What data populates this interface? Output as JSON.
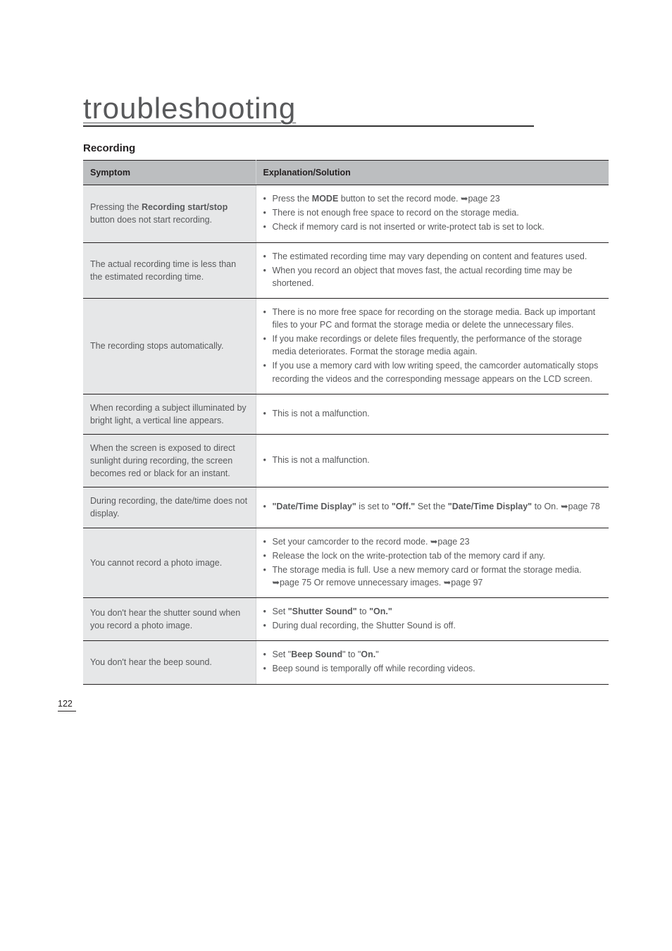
{
  "page": {
    "title": "troubleshooting",
    "section": "Recording",
    "header": {
      "symptom": "Symptom",
      "solution": "Explanation/Solution"
    },
    "page_number": "122"
  },
  "rows": [
    {
      "symptom_html": "Pressing the <b>Recording start/stop</b> button does not start recording.",
      "solution_items": [
        "Press the <b>MODE</b> button to set the record mode. ➥page 23",
        "There is not enough free space to record on the storage media.",
        "Check if memory card is not inserted or write-protect tab is set to lock."
      ]
    },
    {
      "symptom_html": "The actual recording time is less than the estimated recording time.",
      "solution_items": [
        "The estimated recording time may vary depending on content and features used.",
        "When you record an object that moves fast, the actual recording time may be shortened."
      ]
    },
    {
      "symptom_html": "The recording stops automatically.",
      "solution_items": [
        "There is no more free space for recording on the storage media. Back up important files to your PC and format the storage media or delete the unnecessary files.",
        "If you make recordings or delete files frequently, the performance of the storage media deteriorates. Format the storage media again.",
        "If you use a memory card with low writing speed, the camcorder automatically stops recording the videos and the corresponding message appears on the LCD screen."
      ]
    },
    {
      "symptom_html": "When recording a subject illuminated by bright light, a vertical line appears.",
      "solution_items": [
        "This is not a malfunction."
      ]
    },
    {
      "symptom_html": "When the screen is exposed to direct sunlight during recording, the screen becomes red or black for an instant.",
      "solution_items": [
        "This is not a malfunction."
      ]
    },
    {
      "symptom_html": "During recording, the date/time does not display.",
      "solution_items": [
        "<b>\"Date/Time Display\"</b> is set to <b>\"Off.\"</b> Set the <b>\"Date/Time Display\"</b> to On. ➥page 78"
      ]
    },
    {
      "symptom_html": "You cannot record a photo image.",
      "solution_items": [
        "Set your camcorder to the record mode. ➥page 23",
        "Release the lock on the write-protection tab of the memory card if any.",
        "The storage media is full. Use a new memory card or format the storage media. ➥page 75 Or remove unnecessary images. ➥page 97"
      ]
    },
    {
      "symptom_html": "You don't hear the shutter sound when you record a photo image.",
      "solution_items": [
        "Set <b>\"Shutter Sound\"</b> to <b>\"On.\"</b>",
        "During dual recording, the Shutter Sound is off."
      ]
    },
    {
      "symptom_html": "You don't hear the beep sound.",
      "solution_items": [
        "Set \"<b>Beep Sound</b>\" to \"<b>On.</b>\"",
        "Beep sound is temporally off while recording videos."
      ]
    }
  ],
  "colors": {
    "header_bg": "#bcbec0",
    "sym_bg": "#e6e7e8",
    "border_dark": "#231f20",
    "border_light": "#d1d3d4",
    "text": "#58595b"
  }
}
